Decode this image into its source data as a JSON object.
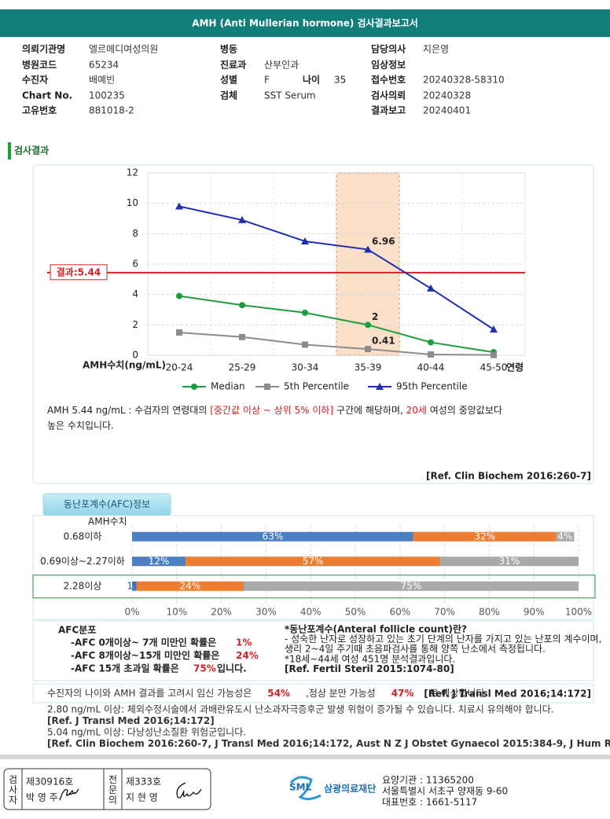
{
  "header": {
    "title": "AMH (Anti Mullerian hormone) 검사결과보고서"
  },
  "info": {
    "columns": [
      [
        {
          "label": "의뢰기관명",
          "value": "엘르메디여성의원"
        },
        {
          "label": "병원코드",
          "value": "65234"
        },
        {
          "label": "수진자",
          "value": "배예빈"
        },
        {
          "label": "Chart No.",
          "value": "100235"
        },
        {
          "label": "고유번호",
          "value": "881018-2"
        }
      ],
      [
        {
          "label": "병동"
        },
        {
          "label": "진료과",
          "value": "산부인과"
        },
        {
          "label": "성별",
          "value": "F"
        },
        {
          "label": "검체",
          "value": "SST Serum"
        }
      ],
      [
        {
          "label": "담당의사",
          "value": "지은영"
        },
        {
          "label": "임상정보"
        },
        {
          "label": "접수번호",
          "value": "20240328-58310"
        },
        {
          "label": "검사의뢰",
          "value": "20240328"
        },
        {
          "label": "결과보고",
          "value": "20240401"
        }
      ]
    ],
    "age": {
      "label": "나이",
      "value": "35"
    }
  },
  "section_title": "검사결과",
  "chart_data": [
    {
      "type": "line",
      "categories": [
        "20-24",
        "25-29",
        "30-34",
        "35-39",
        "40-44",
        "45-50"
      ],
      "x_label": "연령",
      "y_label": "AMH수치(ng/mL)",
      "ylim": [
        0,
        12
      ],
      "yticks": [
        0,
        2,
        4,
        6,
        8,
        10,
        12
      ],
      "grid": true,
      "highlight_category": "35-39",
      "reference_line": {
        "label": "결과:5.44",
        "value": 5.44,
        "color": "#d42020"
      },
      "legend": "bottom",
      "series": [
        {
          "name": "Median",
          "color": "#1e9e3a",
          "marker": "circle",
          "values": [
            3.9,
            3.3,
            2.8,
            2.0,
            0.85,
            0.2
          ],
          "value_labels": [
            null,
            null,
            null,
            "2",
            null,
            null
          ]
        },
        {
          "name": "5th Percentile",
          "color": "#8c8c8c",
          "marker": "square",
          "values": [
            1.5,
            1.2,
            0.7,
            0.41,
            0.05,
            0.02
          ],
          "value_labels": [
            null,
            null,
            null,
            "0.41",
            null,
            null
          ]
        },
        {
          "name": "95th Percentile",
          "color": "#1f2fb5",
          "marker": "triangle",
          "values": [
            9.8,
            8.9,
            7.5,
            6.96,
            4.4,
            1.7
          ],
          "value_labels": [
            null,
            null,
            null,
            "6.96",
            null,
            null
          ]
        }
      ]
    },
    {
      "type": "stacked_bar",
      "orientation": "horizontal",
      "y_label": "AMH수치",
      "categories": [
        "0.68이하",
        "0.69이상~2.27이하",
        "2.28이상"
      ],
      "highlight_category": "2.28이상",
      "xlim": [
        0,
        100
      ],
      "xticks": [
        {
          "value": 0,
          "label": "0%"
        },
        {
          "value": 10,
          "label": "10%"
        },
        {
          "value": 20,
          "label": "20%"
        },
        {
          "value": 30,
          "label": "30%"
        },
        {
          "value": 40,
          "label": "40%"
        },
        {
          "value": 50,
          "label": "50%"
        },
        {
          "value": 60,
          "label": "60%"
        },
        {
          "value": 70,
          "label": "70%"
        },
        {
          "value": 80,
          "label": "80%"
        },
        {
          "value": 90,
          "label": "90%"
        },
        {
          "value": 100,
          "label": "100%"
        }
      ],
      "grid": true,
      "series": [
        {
          "color": "#4a7fc1",
          "values": [
            63,
            12,
            1
          ],
          "value_labels": [
            "63%",
            "12%",
            "1%"
          ]
        },
        {
          "color": "#ed7d31",
          "values": [
            32,
            57,
            24
          ],
          "value_labels": [
            "32%",
            "57%",
            "24%"
          ]
        },
        {
          "color": "#a9a9a9",
          "values": [
            4,
            31,
            75
          ],
          "value_labels": [
            "4%",
            "31%",
            "75%"
          ]
        }
      ]
    }
  ],
  "result_text": {
    "segments": [
      {
        "text": "AMH  5.44 ng/mL : 수검자의 연령대의 "
      },
      {
        "text": "[중간값 이상 ~ 상위 5% 이하]",
        "color": "#d42020"
      },
      {
        "text": "  구간에 해당하며, "
      },
      {
        "text": "20세",
        "color": "#d42020"
      },
      {
        "text": " 여성의 중앙값보다"
      }
    ],
    "continuation": "높은 수치입니다.",
    "reference": "[Ref. Clin Biochem 2016:260-7]"
  },
  "afc_title": "동난포계수(AFC)정보",
  "afc_distribution": {
    "title": "AFC분포",
    "lines": [
      {
        "text": "-AFC 0개이상~ 7개 미만인 확률은",
        "percent": "1%"
      },
      {
        "text": "-AFC 8개이상~15개 미만인 확률은",
        "percent": "24%"
      },
      {
        "text": "-AFC 15개 초과일 확률은",
        "percent": "75%",
        "suffix": "입니다."
      }
    ]
  },
  "afc_note": [
    "*동난포계수(Anteral follicle count)란?",
    "- 성숙한 난자로 성장하고 있는 초기 단계의 난자를 가지고 있는 난포의 계수이며,",
    "  생리 2~4일 주기때 초음파검사를 통해 양쪽 난소에서 측정됩니다.",
    "*18세~44세 여성 451명 분석결과입니다.",
    "[Ref. Fertil Steril 2015:1074-80]"
  ],
  "prognosis": {
    "segments": [
      {
        "text": "수진자의 나이와 AMH 결과를 고려시 임신 가능성은"
      },
      {
        "text": "54%",
        "color": "#d42020"
      },
      {
        "text": ",정상 분만 가능성"
      },
      {
        "text": "47%",
        "color": "#d42020"
      },
      {
        "text": "로 예상됩니다."
      }
    ],
    "reference": "[Ref. J Transl Med 2016;14:172]"
  },
  "notes": [
    "2.80 ng/mL  이상: 체외수정시술에서 과배란유도시 난소과자극증후군 발생 위험이 증가될 수 있습니다. 치료시 유의해야 합니다.",
    "[Ref. J Transl Med 2016;14:172]",
    "5.04 ng/mL  이상: 다낭성난소질환 위험군입니다.",
    "[Ref. Clin Biochem 2016:260-7, J Transl Med 2016;14:172, Aust N Z J Obstet Gynaecol 2015:384-9, J Hum Reprod Sci 2019:104-13.]"
  ],
  "footer": {
    "signers": [
      {
        "role": "검사자",
        "number": "제30916호",
        "name": "박 영 주"
      },
      {
        "role": "전문의",
        "number": "제333호",
        "name": "지 현 영"
      }
    ],
    "logo": "SML",
    "org": "삼광의료재단",
    "contact": [
      "요양기관 : 11365200",
      "서울특별시 서초구 양재동 9-60",
      "대표번호 : 1661-5117"
    ]
  }
}
